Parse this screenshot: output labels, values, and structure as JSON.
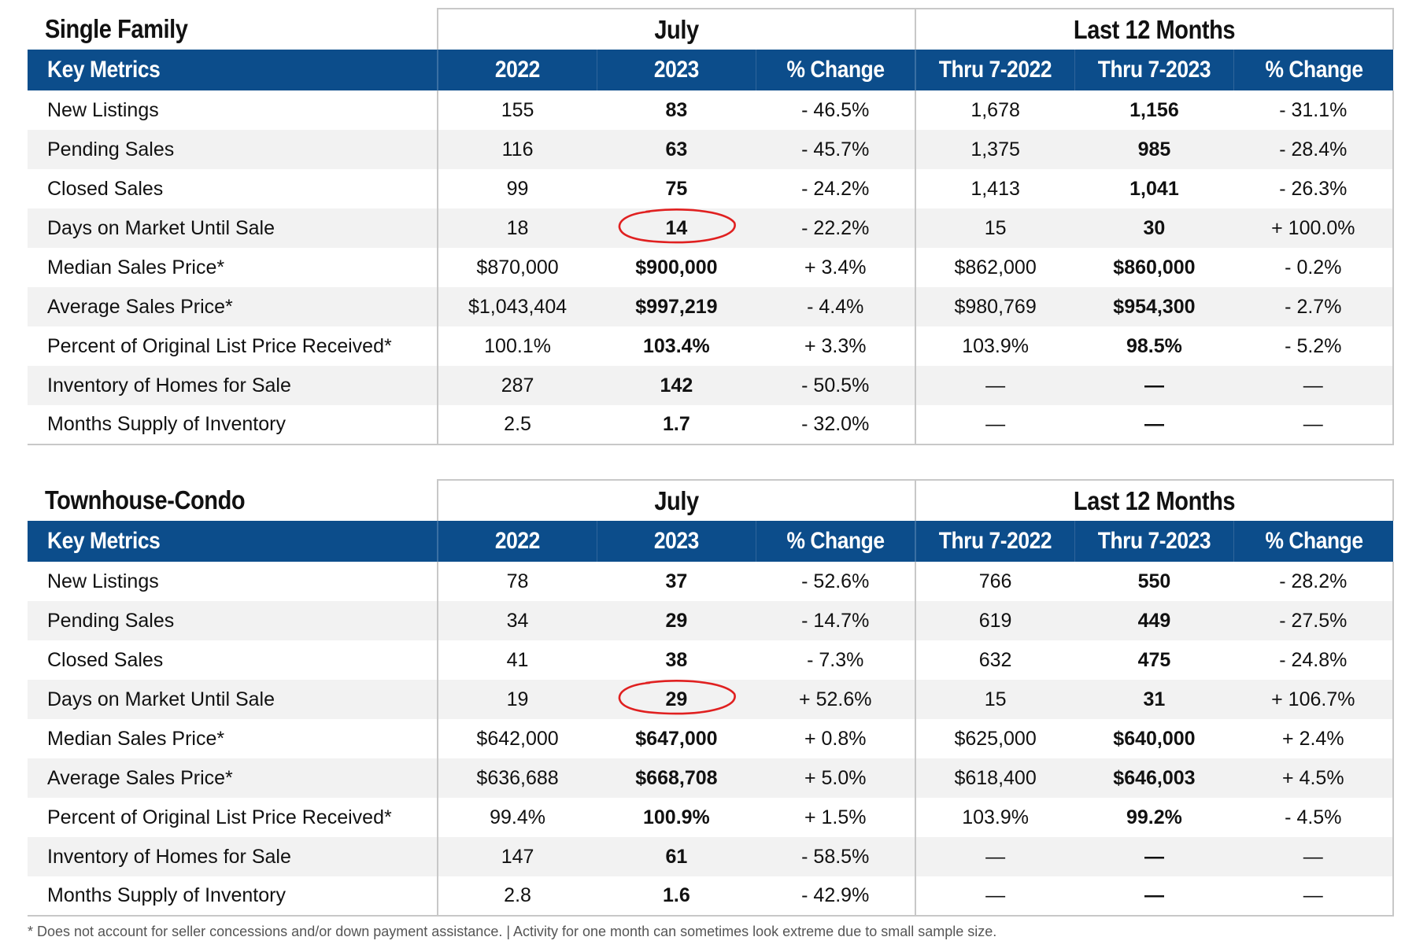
{
  "columns": {
    "group_month": "July",
    "group_12": "Last 12 Months",
    "metric_header": "Key Metrics",
    "c2022": "2022",
    "c2023": "2023",
    "change": "% Change",
    "thru2022": "Thru 7-2022",
    "thru2023": "Thru 7-2023",
    "change12": "% Change"
  },
  "single_family": {
    "title": "Single Family",
    "rows": [
      {
        "metric": "New Listings",
        "v2022": "155",
        "v2023": "83",
        "chg": "- 46.5%",
        "t2022": "1,678",
        "t2023": "1,156",
        "chg12": "- 31.1%"
      },
      {
        "metric": "Pending Sales",
        "v2022": "116",
        "v2023": "63",
        "chg": "- 45.7%",
        "t2022": "1,375",
        "t2023": "985",
        "chg12": "- 28.4%"
      },
      {
        "metric": "Closed Sales",
        "v2022": "99",
        "v2023": "75",
        "chg": "- 24.2%",
        "t2022": "1,413",
        "t2023": "1,041",
        "chg12": "- 26.3%"
      },
      {
        "metric": "Days on Market Until Sale",
        "v2022": "18",
        "v2023": "14",
        "chg": "- 22.2%",
        "t2022": "15",
        "t2023": "30",
        "chg12": "+ 100.0%",
        "circled": true
      },
      {
        "metric": "Median Sales Price*",
        "v2022": "$870,000",
        "v2023": "$900,000",
        "chg": "+ 3.4%",
        "t2022": "$862,000",
        "t2023": "$860,000",
        "chg12": "- 0.2%"
      },
      {
        "metric": "Average Sales Price*",
        "v2022": "$1,043,404",
        "v2023": "$997,219",
        "chg": "- 4.4%",
        "t2022": "$980,769",
        "t2023": "$954,300",
        "chg12": "- 2.7%"
      },
      {
        "metric": "Percent of Original List Price Received*",
        "v2022": "100.1%",
        "v2023": "103.4%",
        "chg": "+ 3.3%",
        "t2022": "103.9%",
        "t2023": "98.5%",
        "chg12": "- 5.2%"
      },
      {
        "metric": "Inventory of Homes for Sale",
        "v2022": "287",
        "v2023": "142",
        "chg": "- 50.5%",
        "t2022": "—",
        "t2023": "—",
        "chg12": "—"
      },
      {
        "metric": "Months Supply of Inventory",
        "v2022": "2.5",
        "v2023": "1.7",
        "chg": "- 32.0%",
        "t2022": "—",
        "t2023": "—",
        "chg12": "—"
      }
    ]
  },
  "townhouse_condo": {
    "title": "Townhouse-Condo",
    "rows": [
      {
        "metric": "New Listings",
        "v2022": "78",
        "v2023": "37",
        "chg": "- 52.6%",
        "t2022": "766",
        "t2023": "550",
        "chg12": "- 28.2%"
      },
      {
        "metric": "Pending Sales",
        "v2022": "34",
        "v2023": "29",
        "chg": "- 14.7%",
        "t2022": "619",
        "t2023": "449",
        "chg12": "- 27.5%"
      },
      {
        "metric": "Closed Sales",
        "v2022": "41",
        "v2023": "38",
        "chg": "- 7.3%",
        "t2022": "632",
        "t2023": "475",
        "chg12": "- 24.8%"
      },
      {
        "metric": "Days on Market Until Sale",
        "v2022": "19",
        "v2023": "29",
        "chg": "+ 52.6%",
        "t2022": "15",
        "t2023": "31",
        "chg12": "+ 106.7%",
        "circled": true
      },
      {
        "metric": "Median Sales Price*",
        "v2022": "$642,000",
        "v2023": "$647,000",
        "chg": "+ 0.8%",
        "t2022": "$625,000",
        "t2023": "$640,000",
        "chg12": "+ 2.4%"
      },
      {
        "metric": "Average Sales Price*",
        "v2022": "$636,688",
        "v2023": "$668,708",
        "chg": "+ 5.0%",
        "t2022": "$618,400",
        "t2023": "$646,003",
        "chg12": "+ 4.5%"
      },
      {
        "metric": "Percent of Original List Price Received*",
        "v2022": "99.4%",
        "v2023": "100.9%",
        "chg": "+ 1.5%",
        "t2022": "103.9%",
        "t2023": "99.2%",
        "chg12": "- 4.5%"
      },
      {
        "metric": "Inventory of Homes for Sale",
        "v2022": "147",
        "v2023": "61",
        "chg": "- 58.5%",
        "t2022": "—",
        "t2023": "—",
        "chg12": "—"
      },
      {
        "metric": "Months Supply of Inventory",
        "v2022": "2.8",
        "v2023": "1.6",
        "chg": "- 42.9%",
        "t2022": "—",
        "t2023": "—",
        "chg12": "—"
      }
    ]
  },
  "annotation_color": "#e02020",
  "footnote": "* Does not account for seller concessions and/or down payment assistance. | Activity for one month can sometimes look extreme due to small sample size."
}
